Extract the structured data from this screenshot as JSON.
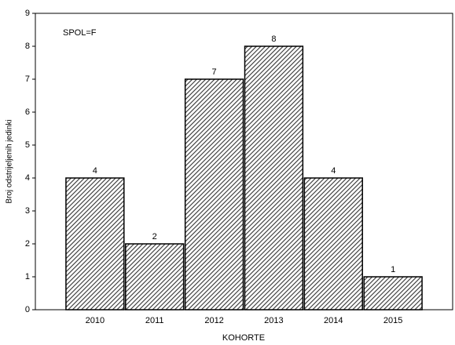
{
  "chart_data": {
    "type": "bar",
    "annotation": "SPOL=F",
    "xlabel": "KOHORTE",
    "ylabel": "Broj odstrijeljenih jedinki",
    "categories": [
      "2010",
      "2011",
      "2012",
      "2013",
      "2014",
      "2015"
    ],
    "values": [
      4,
      2,
      7,
      8,
      4,
      1
    ],
    "color": "#333333",
    "ylim": [
      0,
      9
    ],
    "yticks": [
      0,
      1,
      2,
      3,
      4,
      5,
      6,
      7,
      8,
      9
    ]
  }
}
